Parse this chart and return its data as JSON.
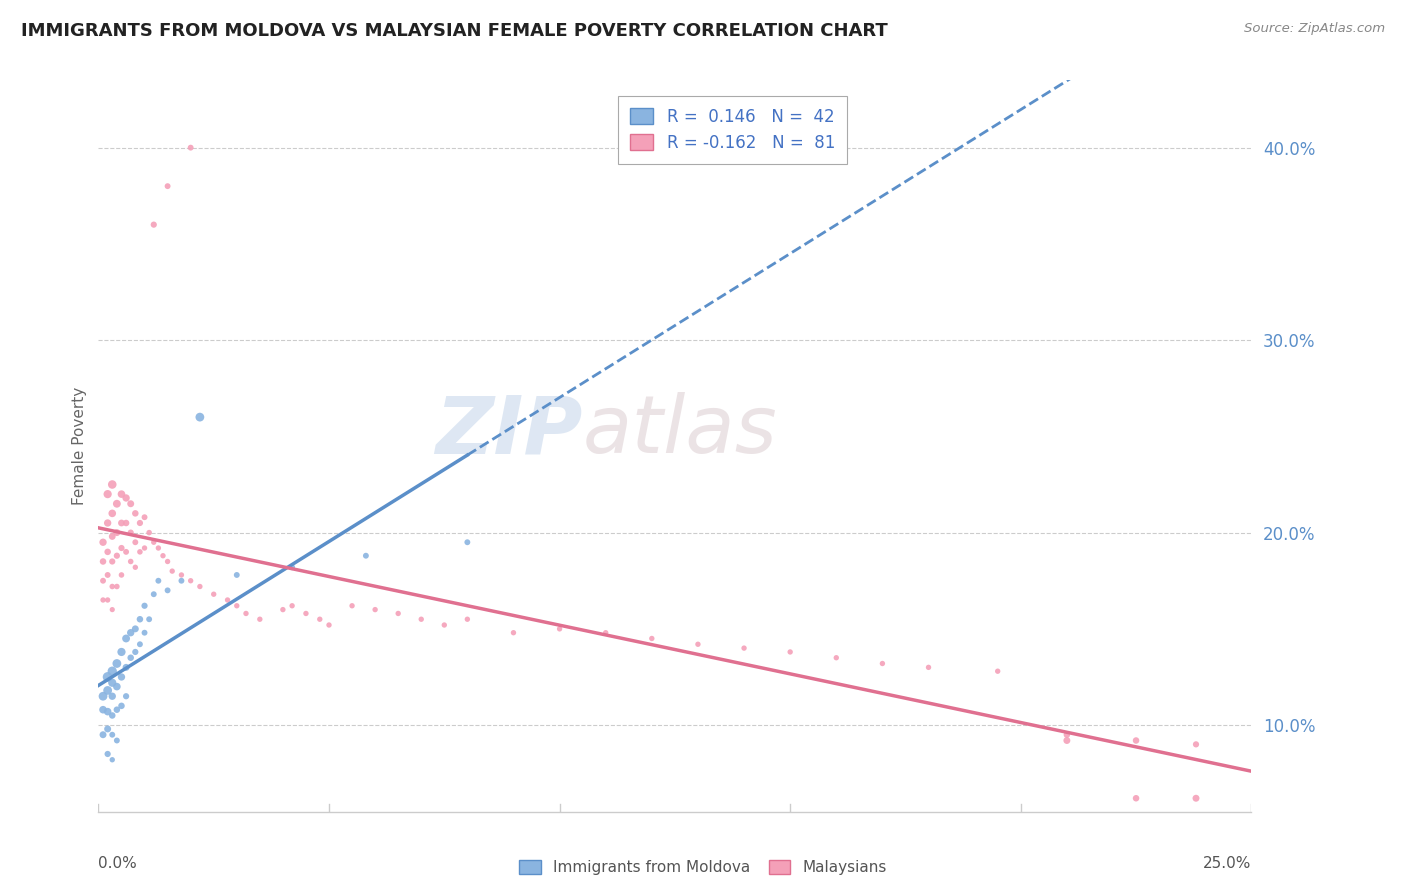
{
  "title": "IMMIGRANTS FROM MOLDOVA VS MALAYSIAN FEMALE POVERTY CORRELATION CHART",
  "source": "Source: ZipAtlas.com",
  "ylabel": "Female Poverty",
  "yticks": [
    0.1,
    0.2,
    0.3,
    0.4
  ],
  "ytick_labels": [
    "10.0%",
    "20.0%",
    "30.0%",
    "40.0%"
  ],
  "xlim": [
    0.0,
    0.25
  ],
  "ylim": [
    0.055,
    0.435
  ],
  "legend_line1": "R =  0.146   N =  42",
  "legend_line2": "R = -0.162   N =  81",
  "color_blue": "#8ab4e0",
  "color_pink": "#f4a0b8",
  "color_blue_line": "#5b8fc9",
  "color_pink_line": "#e07090",
  "watermark_zip": "ZIP",
  "watermark_atlas": "atlas",
  "moldova_x": [
    0.001,
    0.001,
    0.001,
    0.002,
    0.002,
    0.002,
    0.002,
    0.002,
    0.003,
    0.003,
    0.003,
    0.003,
    0.003,
    0.003,
    0.004,
    0.004,
    0.004,
    0.004,
    0.005,
    0.005,
    0.005,
    0.006,
    0.006,
    0.006,
    0.007,
    0.007,
    0.008,
    0.008,
    0.009,
    0.009,
    0.01,
    0.01,
    0.011,
    0.012,
    0.013,
    0.015,
    0.018,
    0.022,
    0.03,
    0.042,
    0.058,
    0.08
  ],
  "moldova_y": [
    0.115,
    0.108,
    0.095,
    0.125,
    0.118,
    0.107,
    0.098,
    0.085,
    0.128,
    0.122,
    0.115,
    0.105,
    0.095,
    0.082,
    0.132,
    0.12,
    0.108,
    0.092,
    0.138,
    0.125,
    0.11,
    0.145,
    0.13,
    0.115,
    0.148,
    0.135,
    0.15,
    0.138,
    0.155,
    0.142,
    0.162,
    0.148,
    0.155,
    0.168,
    0.175,
    0.17,
    0.175,
    0.26,
    0.178,
    0.182,
    0.188,
    0.195
  ],
  "moldova_sizes": [
    40,
    30,
    25,
    50,
    40,
    30,
    25,
    20,
    45,
    35,
    28,
    22,
    18,
    15,
    40,
    30,
    22,
    18,
    35,
    28,
    22,
    32,
    25,
    20,
    28,
    22,
    25,
    20,
    22,
    18,
    20,
    18,
    18,
    18,
    18,
    18,
    18,
    40,
    18,
    18,
    18,
    18
  ],
  "malaysian_x": [
    0.001,
    0.001,
    0.001,
    0.001,
    0.002,
    0.002,
    0.002,
    0.002,
    0.002,
    0.003,
    0.003,
    0.003,
    0.003,
    0.003,
    0.003,
    0.004,
    0.004,
    0.004,
    0.004,
    0.005,
    0.005,
    0.005,
    0.005,
    0.006,
    0.006,
    0.006,
    0.007,
    0.007,
    0.007,
    0.008,
    0.008,
    0.008,
    0.009,
    0.009,
    0.01,
    0.01,
    0.011,
    0.012,
    0.013,
    0.014,
    0.015,
    0.016,
    0.018,
    0.02,
    0.022,
    0.025,
    0.028,
    0.03,
    0.032,
    0.035,
    0.04,
    0.042,
    0.045,
    0.048,
    0.05,
    0.055,
    0.06,
    0.065,
    0.07,
    0.075,
    0.08,
    0.09,
    0.1,
    0.11,
    0.12,
    0.13,
    0.14,
    0.15,
    0.16,
    0.17,
    0.18,
    0.195,
    0.21,
    0.225,
    0.238,
    0.21,
    0.238,
    0.225,
    0.012,
    0.015,
    0.02
  ],
  "malaysian_y": [
    0.195,
    0.185,
    0.175,
    0.165,
    0.22,
    0.205,
    0.19,
    0.178,
    0.165,
    0.225,
    0.21,
    0.198,
    0.185,
    0.172,
    0.16,
    0.215,
    0.2,
    0.188,
    0.172,
    0.22,
    0.205,
    0.192,
    0.178,
    0.218,
    0.205,
    0.19,
    0.215,
    0.2,
    0.185,
    0.21,
    0.195,
    0.182,
    0.205,
    0.19,
    0.208,
    0.192,
    0.2,
    0.195,
    0.192,
    0.188,
    0.185,
    0.18,
    0.178,
    0.175,
    0.172,
    0.168,
    0.165,
    0.162,
    0.158,
    0.155,
    0.16,
    0.162,
    0.158,
    0.155,
    0.152,
    0.162,
    0.16,
    0.158,
    0.155,
    0.152,
    0.155,
    0.148,
    0.15,
    0.148,
    0.145,
    0.142,
    0.14,
    0.138,
    0.135,
    0.132,
    0.13,
    0.128,
    0.092,
    0.092,
    0.09,
    0.095,
    0.062,
    0.062,
    0.36,
    0.38,
    0.4
  ],
  "malaysian_sizes": [
    28,
    22,
    18,
    15,
    35,
    28,
    22,
    18,
    15,
    38,
    30,
    24,
    20,
    16,
    14,
    32,
    25,
    20,
    16,
    30,
    24,
    20,
    16,
    28,
    22,
    18,
    25,
    20,
    16,
    22,
    18,
    15,
    20,
    16,
    18,
    15,
    16,
    15,
    15,
    15,
    15,
    15,
    15,
    15,
    15,
    15,
    15,
    15,
    15,
    15,
    15,
    15,
    15,
    15,
    15,
    15,
    15,
    15,
    15,
    15,
    15,
    15,
    15,
    15,
    15,
    15,
    15,
    15,
    15,
    15,
    15,
    15,
    25,
    22,
    20,
    22,
    25,
    22,
    20,
    18,
    18
  ]
}
